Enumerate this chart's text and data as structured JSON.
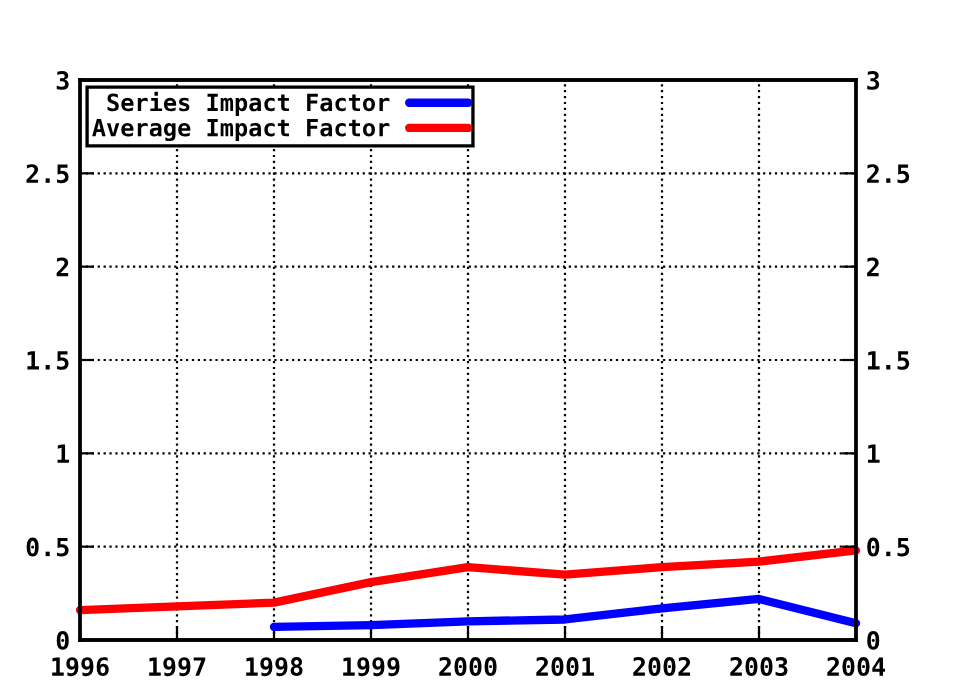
{
  "chart_data": {
    "type": "line",
    "x": [
      1996,
      1997,
      1998,
      1999,
      2000,
      2001,
      2002,
      2003,
      2004
    ],
    "series": [
      {
        "name": "Series Impact Factor",
        "color": "#0000ff",
        "values": [
          null,
          null,
          0.07,
          0.08,
          0.1,
          0.11,
          0.17,
          0.22,
          0.09
        ]
      },
      {
        "name": "Average Impact Factor",
        "color": "#ff0000",
        "values": [
          0.16,
          0.18,
          0.2,
          0.31,
          0.39,
          0.35,
          0.39,
          0.42,
          0.48
        ]
      }
    ],
    "xlim": [
      1996,
      2004
    ],
    "xticks": [
      1996,
      1997,
      1998,
      1999,
      2000,
      2001,
      2002,
      2003,
      2004
    ],
    "ylim": [
      0,
      3
    ],
    "yticks": [
      0,
      0.5,
      1,
      1.5,
      2,
      2.5,
      3
    ],
    "y2lim": [
      0,
      3
    ],
    "y2ticks": [
      0,
      0.5,
      1,
      1.5,
      2,
      2.5,
      3
    ],
    "grid": true,
    "legend": "top left",
    "line_style": "solid",
    "marker": "none"
  }
}
